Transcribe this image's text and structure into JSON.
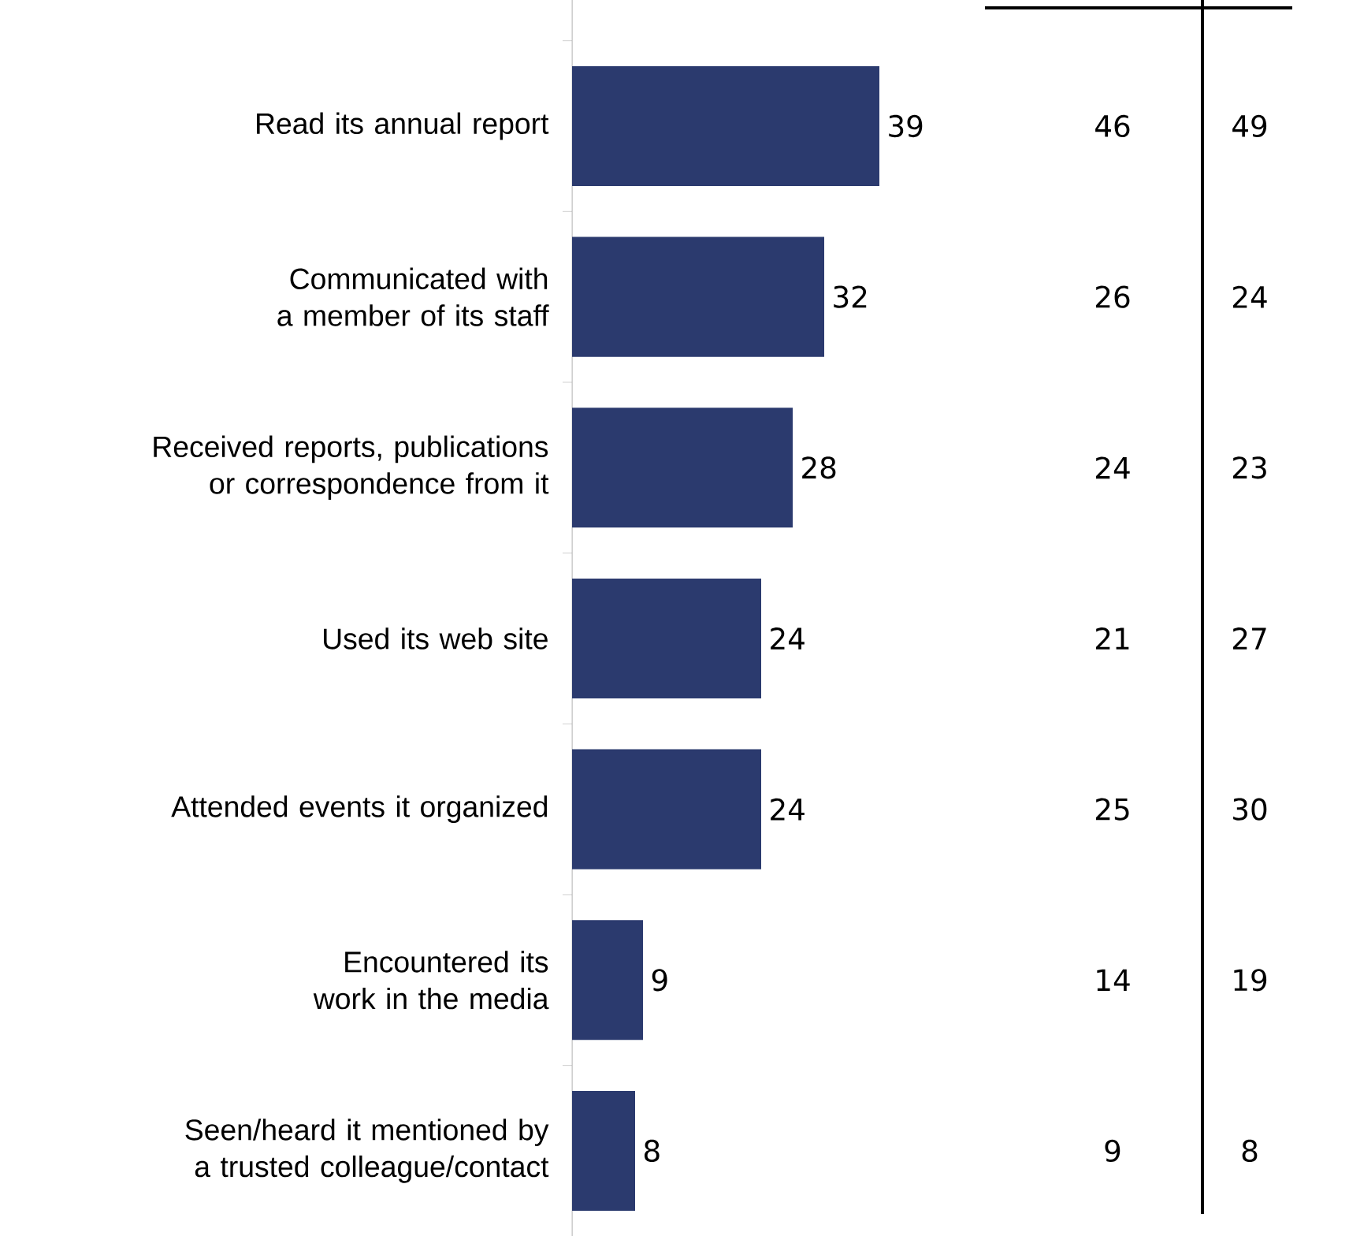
{
  "chart_data": {
    "type": "bar",
    "orientation": "horizontal",
    "categories": [
      "Read its annual report",
      "Communicated with a member of its staff",
      "Received reports, publications or correspondence from it",
      "Used its web site",
      "Attended events it organized",
      "Encountered its work in the media",
      "Seen/heard it mentioned by a trusted colleague/contact"
    ],
    "series": [
      {
        "color": "#2b3a6e",
        "values": [
          39,
          32,
          28,
          24,
          24,
          9,
          8
        ]
      }
    ],
    "data_labels": true,
    "annotations": [
      "46",
      "26",
      "24",
      "21",
      "25",
      "14",
      "9",
      "49",
      "24",
      "23",
      "27",
      "30",
      "19",
      "8"
    ]
  }
}
